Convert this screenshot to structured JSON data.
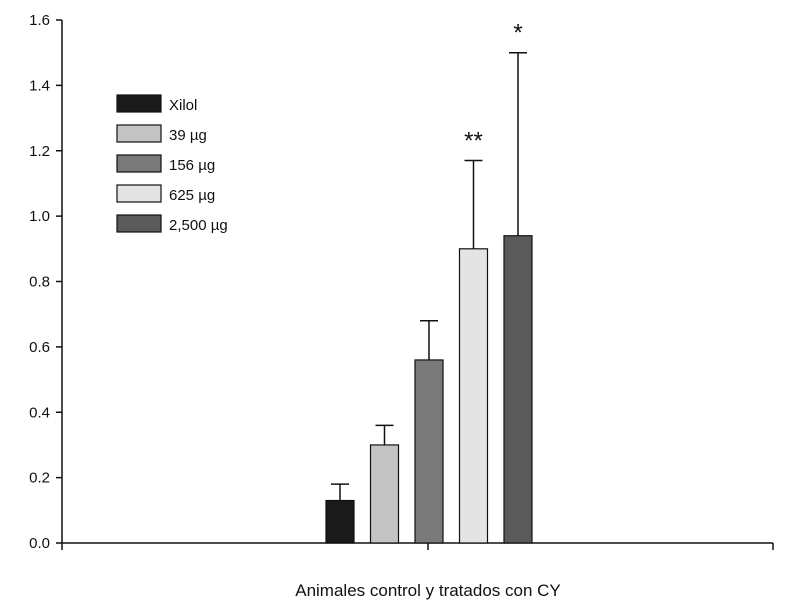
{
  "chart_data": {
    "type": "bar",
    "xlabel": "Animales control y tratados con CY",
    "ylabel": "",
    "ylim": [
      0,
      1.6
    ],
    "yticks": [
      "0.0",
      "0.2",
      "0.4",
      "0.6",
      "0.8",
      "1.0",
      "1.2",
      "1.4",
      "1.6"
    ],
    "grid": false,
    "legend_position": "top-left",
    "series": [
      {
        "name": "Xilol",
        "value": 0.13,
        "error": 0.05,
        "color": "#1a1a1a",
        "annotation": ""
      },
      {
        "name": "39 µg",
        "value": 0.3,
        "error": 0.06,
        "color": "#c4c4c4",
        "annotation": ""
      },
      {
        "name": "156 µg",
        "value": 0.56,
        "error": 0.12,
        "color": "#7a7a7a",
        "annotation": ""
      },
      {
        "name": "625 µg",
        "value": 0.9,
        "error": 0.27,
        "color": "#e4e4e4",
        "annotation": "**"
      },
      {
        "name": "2,500 µg",
        "value": 0.94,
        "error": 0.56,
        "color": "#5a5a5a",
        "annotation": "*"
      }
    ]
  }
}
